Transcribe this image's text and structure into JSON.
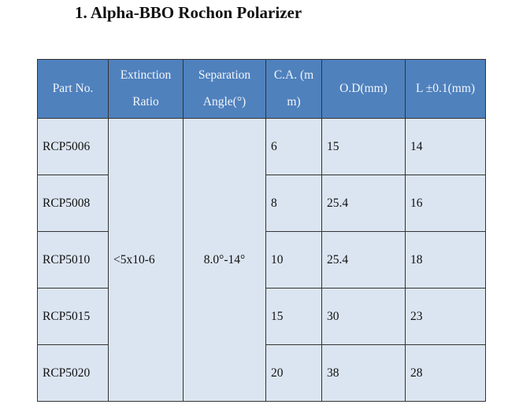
{
  "title": "1. Alpha-BBO Rochon Polarizer",
  "table": {
    "header": [
      "Part No.",
      "Extinction Ratio",
      "Separation Angle(°)",
      "C.A. (mm)",
      "O.D(mm)",
      "L ±0.1(mm)"
    ],
    "extinction_ratio": "<5x10-6",
    "separation_angle": "8.0°-14°",
    "rows": [
      [
        "RCP5006",
        "6",
        "15",
        "14"
      ],
      [
        "RCP5008",
        "8",
        "25.4",
        "16"
      ],
      [
        "RCP5010",
        "10",
        "25.4",
        "18"
      ],
      [
        "RCP5015",
        "15",
        "30",
        "23"
      ],
      [
        "RCP5020",
        "20",
        "38",
        "28"
      ]
    ]
  }
}
